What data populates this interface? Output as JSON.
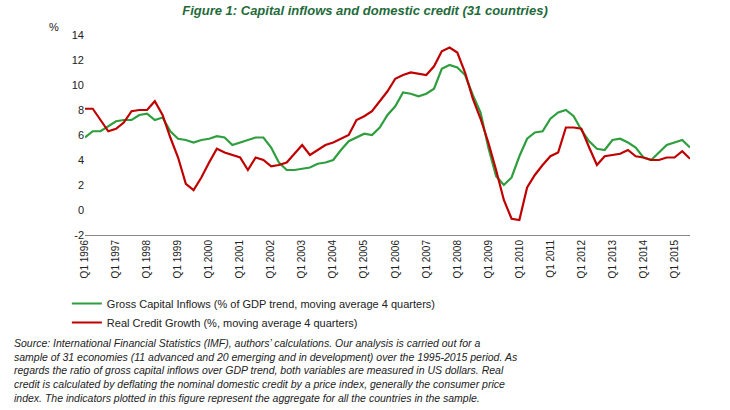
{
  "chart_data": {
    "type": "line",
    "title": "Figure 1: Capital inflows and domestic credit (31 countries)",
    "ylabel": "%",
    "categories": [
      "Q1 1996",
      null,
      null,
      null,
      "Q1 1997",
      null,
      null,
      null,
      "Q1 1998",
      null,
      null,
      null,
      "Q1 1999",
      null,
      null,
      null,
      "Q1 2000",
      null,
      null,
      null,
      "Q1 2001",
      null,
      null,
      null,
      "Q1 2002",
      null,
      null,
      null,
      "Q1 2003",
      null,
      null,
      null,
      "Q1 2004",
      null,
      null,
      null,
      "Q1 2005",
      null,
      null,
      null,
      "Q1 2006",
      null,
      null,
      null,
      "Q1 2007",
      null,
      null,
      null,
      "Q1 2008",
      null,
      null,
      null,
      "Q1 2009",
      null,
      null,
      null,
      "Q1 2010",
      null,
      null,
      null,
      "Q1 2011",
      null,
      null,
      null,
      "Q1 2012",
      null,
      null,
      null,
      "Q1 2013",
      null,
      null,
      null,
      "Q1 2014",
      null,
      null,
      null,
      "Q1 2015",
      null,
      null
    ],
    "series": [
      {
        "name": "Gross Capital Inflows (% of GDP trend, moving average 4 quarters)",
        "color": "#2e9e3e",
        "values": [
          5.8,
          6.3,
          6.3,
          6.7,
          7.1,
          7.2,
          7.2,
          7.6,
          7.7,
          7.2,
          7.4,
          6.3,
          5.7,
          5.6,
          5.4,
          5.6,
          5.7,
          5.9,
          5.8,
          5.2,
          5.4,
          5.6,
          5.8,
          5.8,
          5.0,
          3.8,
          3.2,
          3.2,
          3.3,
          3.4,
          3.7,
          3.8,
          4.0,
          4.8,
          5.5,
          5.8,
          6.1,
          6.0,
          6.6,
          7.6,
          8.3,
          9.4,
          9.3,
          9.1,
          9.3,
          9.7,
          11.3,
          11.6,
          11.4,
          10.8,
          9.2,
          7.8,
          5.0,
          2.7,
          2.0,
          2.6,
          4.3,
          5.7,
          6.2,
          6.3,
          7.3,
          7.8,
          8.0,
          7.5,
          6.4,
          5.5,
          4.9,
          4.8,
          5.6,
          5.7,
          5.4,
          5.0,
          4.2,
          4.0,
          4.6,
          5.2,
          5.4,
          5.6,
          5.0
        ]
      },
      {
        "name": "Real Credit Growth (%, moving average 4 quarters)",
        "color": "#c00000",
        "values": [
          8.1,
          8.1,
          7.2,
          6.3,
          6.5,
          7.0,
          7.9,
          8.0,
          8.0,
          8.7,
          7.6,
          5.8,
          4.2,
          2.1,
          1.6,
          2.6,
          3.8,
          4.9,
          4.6,
          4.4,
          4.2,
          3.2,
          4.2,
          4.0,
          3.5,
          3.6,
          3.8,
          4.5,
          5.2,
          4.4,
          4.8,
          5.2,
          5.4,
          5.7,
          6.0,
          7.2,
          7.5,
          7.9,
          8.7,
          9.5,
          10.5,
          10.8,
          11.0,
          10.9,
          10.8,
          11.5,
          12.7,
          13.0,
          12.6,
          11.0,
          8.9,
          7.3,
          5.4,
          3.2,
          0.8,
          -0.7,
          -0.8,
          1.8,
          2.8,
          3.6,
          4.3,
          4.6,
          6.6,
          6.6,
          6.5,
          5.0,
          3.6,
          4.3,
          4.4,
          4.5,
          4.8,
          4.3,
          4.2,
          4.0,
          4.0,
          4.2,
          4.2,
          4.7,
          4.1
        ]
      }
    ],
    "ylim": [
      -2,
      14
    ],
    "yticks": [
      -2,
      0,
      2,
      4,
      6,
      8,
      10,
      12,
      14
    ],
    "grid": false,
    "legend": "bottom",
    "note": [
      "Source: International Financial Statistics (IMF), authors’ calculations. Our analysis is carried out for a",
      "sample of 31 economies (11 advanced and 20 emerging and in development) over the 1995-2015 period. As",
      "regards the ratio of gross capital inflows over GDP trend, both variables are measured in US dollars. Real",
      "credit is calculated by deflating the nominal domestic credit by a price index, generally the consumer price",
      "index. The indicators plotted in this figure represent the aggregate for all the countries in the sample."
    ]
  }
}
